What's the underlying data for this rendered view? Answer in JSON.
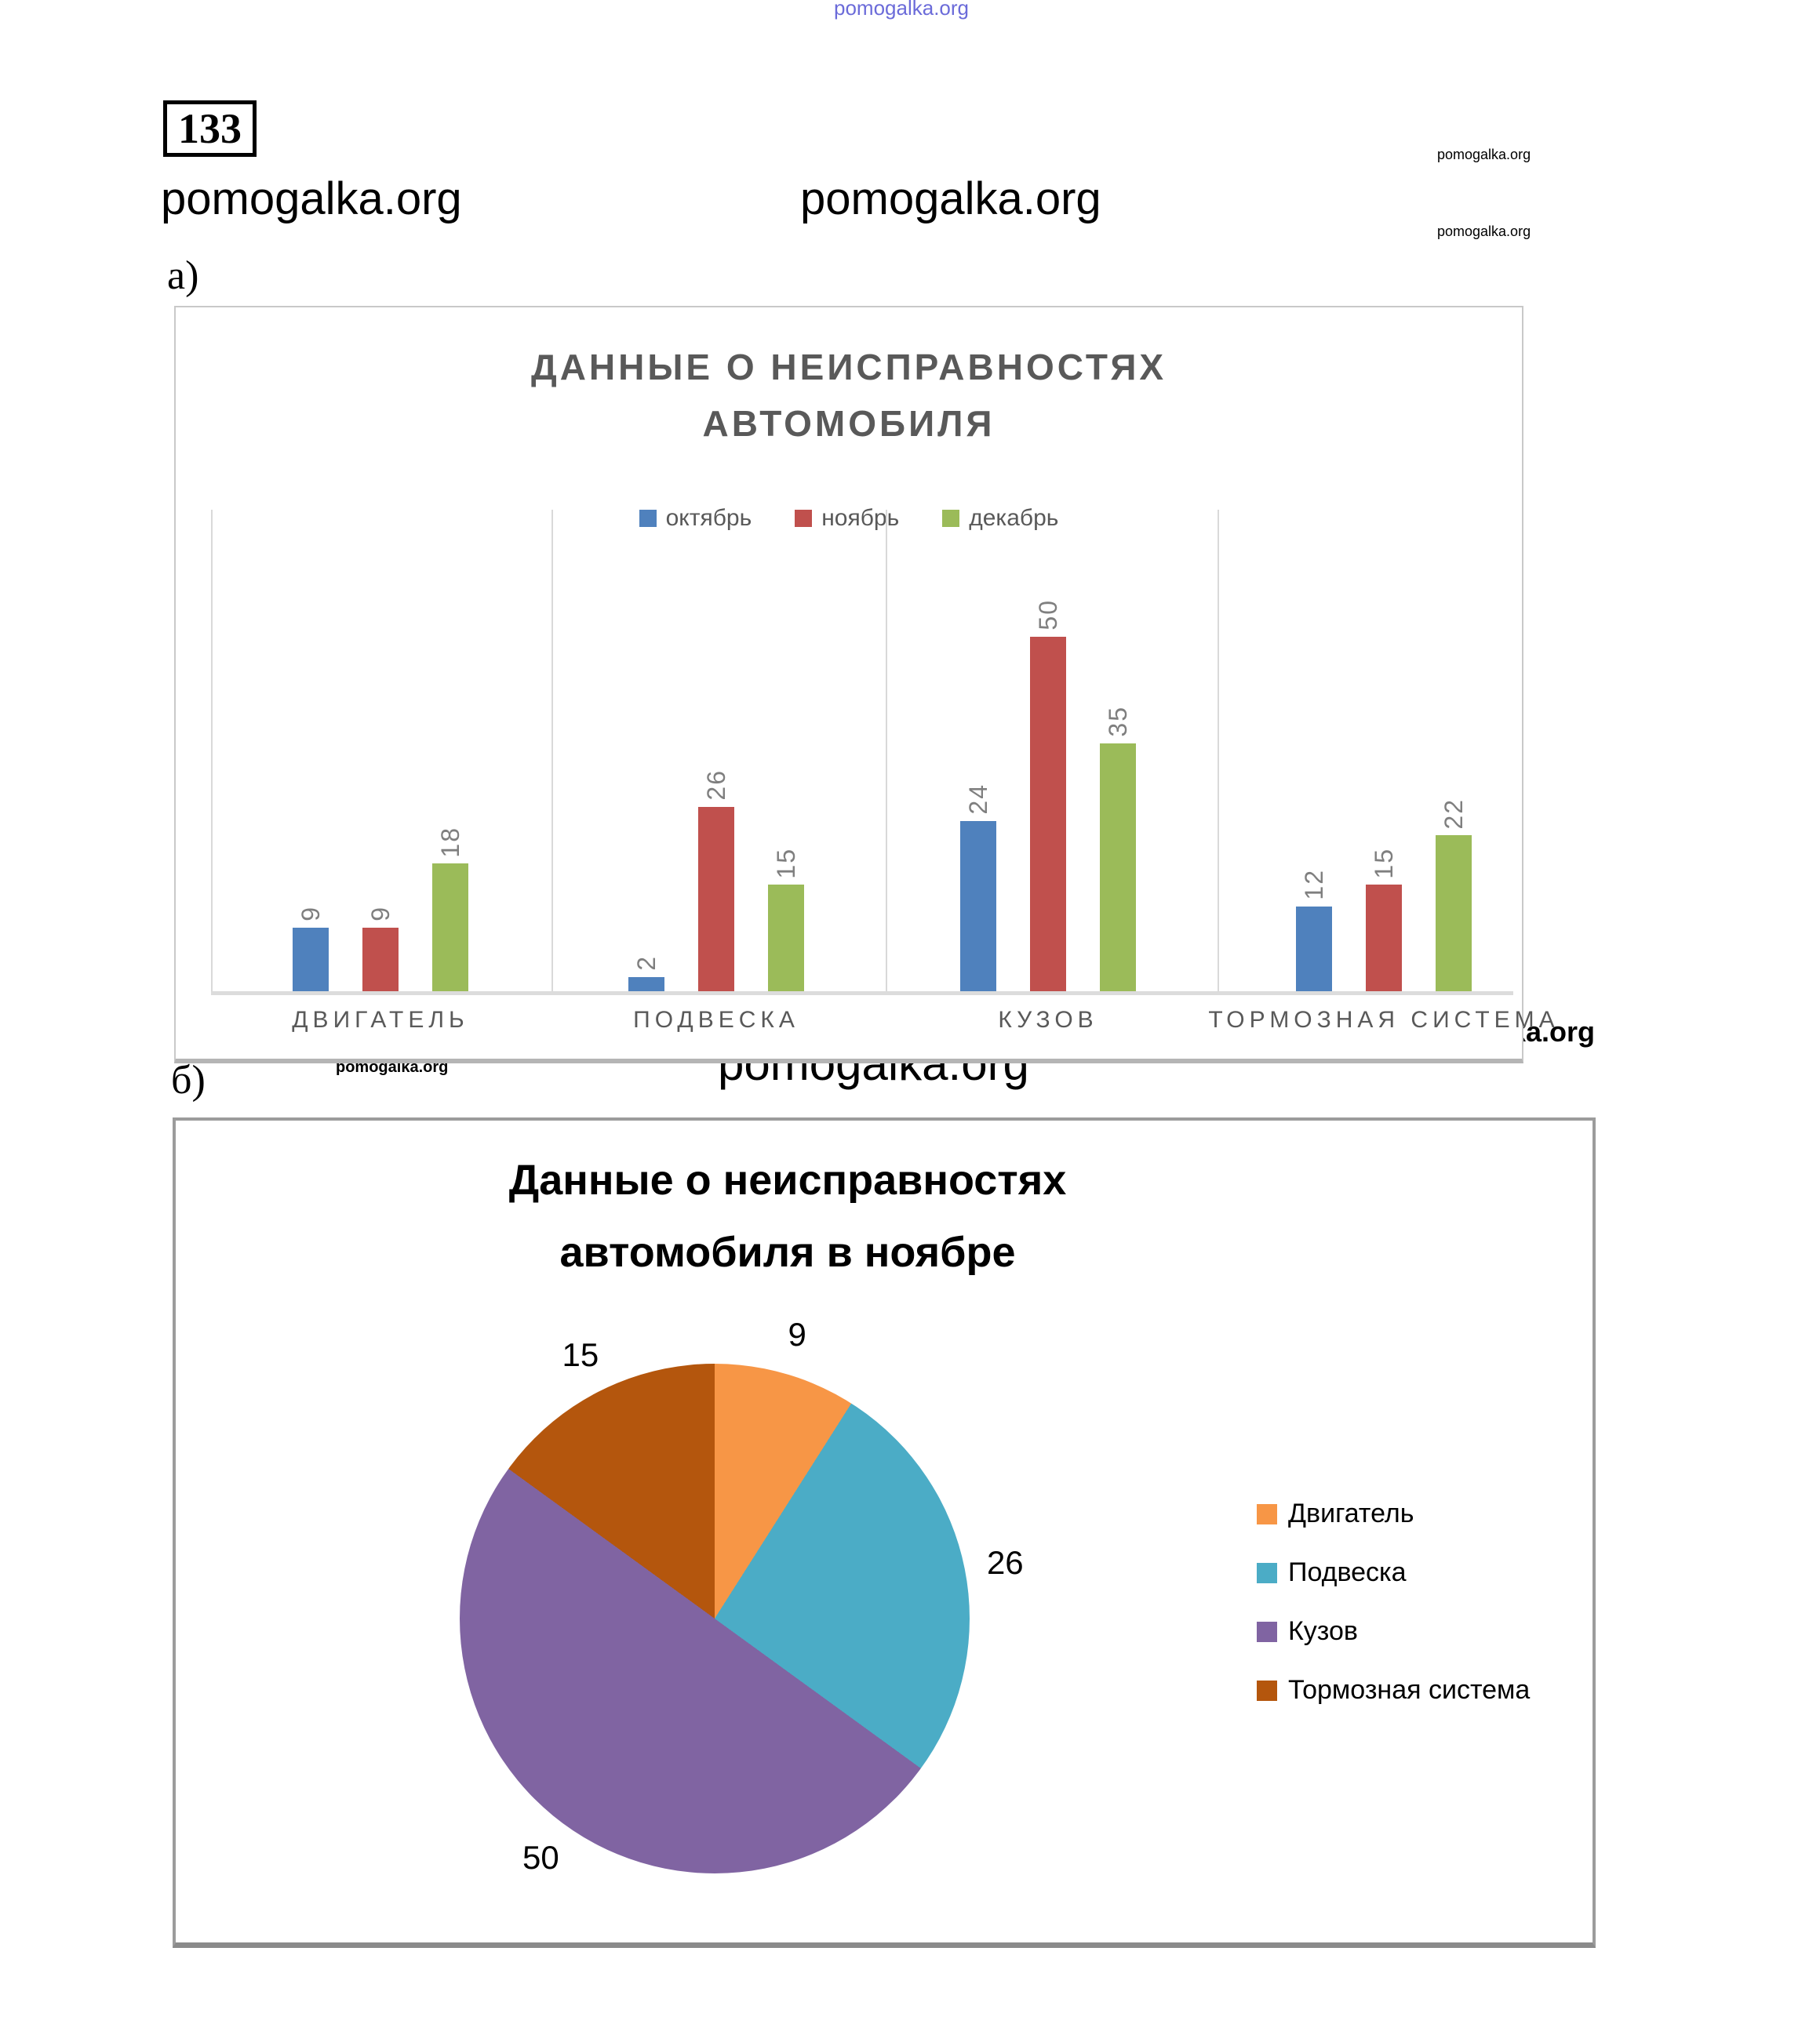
{
  "page": {
    "problem_number": "133",
    "part_a_label": "а)",
    "part_b_label": "б)"
  },
  "watermark": {
    "text": "pomogalka.org"
  },
  "chart_data": [
    {
      "type": "bar",
      "title": "ДАННЫЕ О НЕИСПРАВНОСТЯХ АВТОМОБИЛЯ",
      "title_lines": [
        "ДАННЫЕ О НЕИСПРАВНОСТЯХ",
        "АВТОМОБИЛЯ"
      ],
      "categories": [
        "ДВИГАТЕЛЬ",
        "ПОДВЕСКА",
        "КУЗОВ",
        "ТОРМОЗНАЯ СИСТЕМА"
      ],
      "series": [
        {
          "name": "октябрь",
          "color": "#4F81BD",
          "values": [
            9,
            2,
            24,
            12
          ]
        },
        {
          "name": "ноябрь",
          "color": "#C0504D",
          "values": [
            9,
            26,
            50,
            15
          ]
        },
        {
          "name": "декабрь",
          "color": "#9BBB59",
          "values": [
            18,
            15,
            35,
            22
          ]
        }
      ],
      "ylim": [
        0,
        50
      ],
      "value_label_color": "#7f7f7f",
      "value_label_rotation_deg": -90,
      "legend_position": "top",
      "grid": "vertical category separators, light gray baseline",
      "title_color": "#595959"
    },
    {
      "type": "pie",
      "title": "Данные о неисправностях автомобиля в ноябре",
      "title_lines": [
        "Данные о неисправностях",
        "автомобиля в ноябре"
      ],
      "labels": [
        "Двигатель",
        "Подвеска",
        "Кузов",
        "Тормозная система"
      ],
      "values": [
        9,
        26,
        50,
        15
      ],
      "colors": [
        "#F79646",
        "#4BACC6",
        "#8064A2",
        "#B4560D"
      ],
      "start_angle_deg": 0,
      "direction": "clockwise",
      "legend_position": "right"
    }
  ]
}
